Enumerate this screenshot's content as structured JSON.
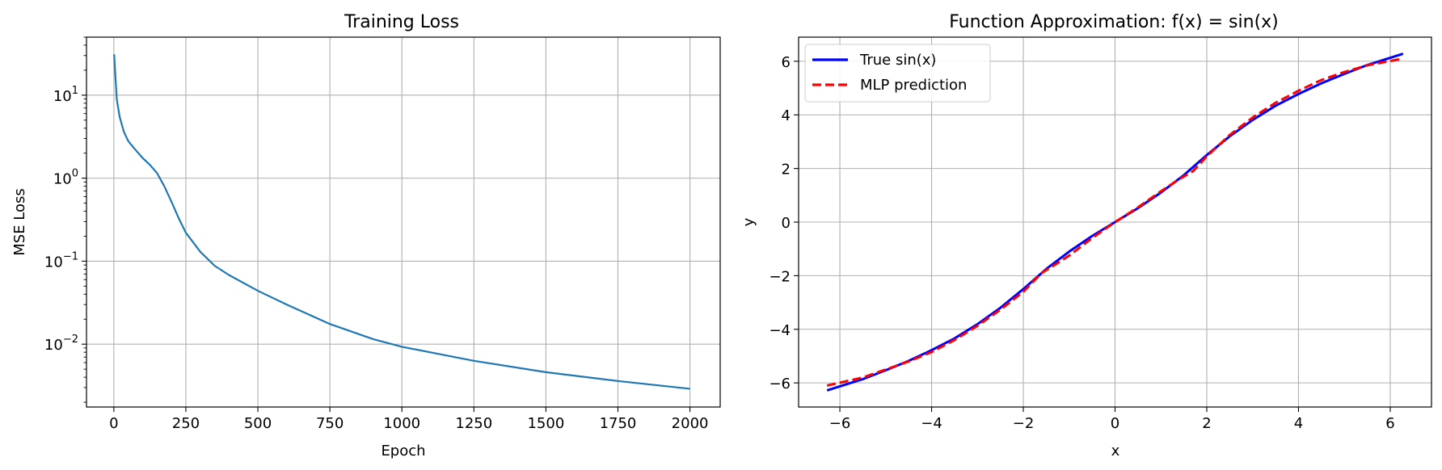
{
  "chart_data": [
    {
      "type": "line",
      "title": "Training Loss",
      "xlabel": "Epoch",
      "ylabel": "MSE Loss",
      "yscale": "log",
      "xlim": [
        -95,
        2105
      ],
      "ylim": [
        0.00175,
        50
      ],
      "grid": true,
      "xticks": [
        0,
        250,
        500,
        750,
        1000,
        1250,
        1500,
        1750,
        2000
      ],
      "xtick_labels": [
        "0",
        "250",
        "500",
        "750",
        "1000",
        "1250",
        "1500",
        "1750",
        "2000"
      ],
      "yticks": [
        0.01,
        0.1,
        1,
        10
      ],
      "ytick_labels": [
        {
          "base": "10",
          "exp": "−2"
        },
        {
          "base": "10",
          "exp": "−1"
        },
        {
          "base": "10",
          "exp": "0"
        },
        {
          "base": "10",
          "exp": "1"
        }
      ],
      "series": [
        {
          "color": "#1f77b4",
          "x": [
            1,
            10,
            20,
            35,
            50,
            70,
            100,
            125,
            150,
            175,
            200,
            225,
            250,
            300,
            350,
            400,
            500,
            600,
            750,
            900,
            1000,
            1250,
            1500,
            1750,
            2000
          ],
          "y": [
            31,
            9,
            5.5,
            3.6,
            2.8,
            2.3,
            1.75,
            1.45,
            1.15,
            0.8,
            0.52,
            0.33,
            0.22,
            0.13,
            0.088,
            0.068,
            0.044,
            0.03,
            0.0175,
            0.0115,
            0.0093,
            0.0063,
            0.0046,
            0.0036,
            0.0029
          ]
        }
      ]
    },
    {
      "type": "line",
      "title": "Function Approximation: f(x) = sin(x)",
      "xlabel": "x",
      "ylabel": "y",
      "xlim": [
        -6.9,
        6.9
      ],
      "ylim": [
        -6.9,
        6.9
      ],
      "grid": true,
      "legend": "upper-left",
      "xticks": [
        -6,
        -4,
        -2,
        0,
        2,
        4,
        6
      ],
      "xtick_labels": [
        "−6",
        "−4",
        "−2",
        "0",
        "2",
        "4",
        "6"
      ],
      "yticks": [
        -6,
        -4,
        -2,
        0,
        2,
        4,
        6
      ],
      "ytick_labels": [
        "−6",
        "−4",
        "−2",
        "0",
        "2",
        "4",
        "6"
      ],
      "series": [
        {
          "name": "True sin(x)",
          "color": "#0000ff",
          "style": "solid",
          "x": [
            -6.28,
            -5.5,
            -5.0,
            -4.5,
            -4.0,
            -3.5,
            -3.0,
            -2.5,
            -2.0,
            -1.5,
            -1.0,
            -0.5,
            0,
            0.5,
            1.0,
            1.5,
            2.0,
            2.5,
            3.0,
            3.5,
            4.0,
            4.5,
            5.0,
            5.5,
            6.28
          ],
          "y": [
            -6.28,
            -5.86,
            -5.53,
            -5.18,
            -4.78,
            -4.34,
            -3.81,
            -3.2,
            -2.5,
            -1.75,
            -1.1,
            -0.52,
            0,
            0.52,
            1.1,
            1.75,
            2.5,
            3.2,
            3.81,
            4.34,
            4.78,
            5.18,
            5.53,
            5.86,
            6.28
          ]
        },
        {
          "name": "MLP prediction",
          "color": "#ff0000",
          "style": "dashed",
          "x": [
            -6.28,
            -5.5,
            -5.0,
            -4.5,
            -4.0,
            -3.5,
            -3.0,
            -2.5,
            -2.0,
            -1.6,
            -1.3,
            -1.0,
            -0.5,
            0,
            0.5,
            1.0,
            1.4,
            1.7,
            2.0,
            2.5,
            3.0,
            3.5,
            4.0,
            4.5,
            5.0,
            5.5,
            6.28
          ],
          "y": [
            -6.1,
            -5.8,
            -5.5,
            -5.2,
            -4.85,
            -4.4,
            -3.87,
            -3.27,
            -2.6,
            -1.9,
            -1.58,
            -1.25,
            -0.6,
            0,
            0.55,
            1.15,
            1.6,
            1.9,
            2.45,
            3.25,
            3.9,
            4.45,
            4.9,
            5.3,
            5.6,
            5.85,
            6.1
          ]
        }
      ]
    }
  ]
}
